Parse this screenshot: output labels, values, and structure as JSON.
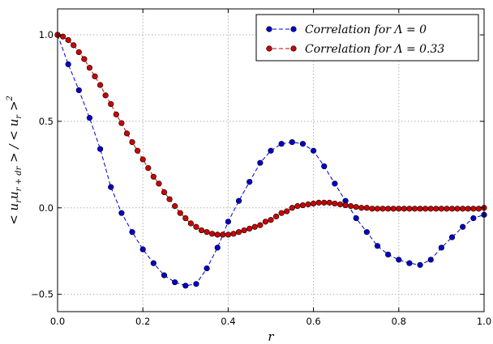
{
  "chart_data": {
    "type": "line",
    "xlabel": "r",
    "ylabel": "<u_r u_{r+dr}> / <u_r>^2",
    "xlim": [
      0.0,
      1.0
    ],
    "ylim": [
      -0.6,
      1.15
    ],
    "xticks": [
      0.0,
      0.2,
      0.4,
      0.6,
      0.8,
      1.0
    ],
    "xtick_labels": [
      "0.0",
      "0.2",
      "0.4",
      "0.6",
      "0.8",
      "1.0"
    ],
    "yticks": [
      -0.5,
      0.0,
      0.5,
      1.0
    ],
    "ytick_labels": [
      "−0.5",
      "0.0",
      "0.5",
      "1.0"
    ],
    "grid": true,
    "legend_position": "top-right",
    "series": [
      {
        "name": "Correlation for Λ=0",
        "legend_text": "Correlation for Λ = 0",
        "color": "#0000cc",
        "line_style": "dashed",
        "marker": "circle",
        "x": [
          0.0,
          0.025,
          0.05,
          0.075,
          0.1,
          0.125,
          0.15,
          0.175,
          0.2,
          0.225,
          0.25,
          0.275,
          0.3,
          0.325,
          0.35,
          0.375,
          0.4,
          0.425,
          0.45,
          0.475,
          0.5,
          0.525,
          0.55,
          0.575,
          0.6,
          0.625,
          0.65,
          0.675,
          0.7,
          0.725,
          0.75,
          0.775,
          0.8,
          0.825,
          0.85,
          0.875,
          0.9,
          0.925,
          0.95,
          0.975,
          1.0
        ],
        "y": [
          1.0,
          0.83,
          0.68,
          0.52,
          0.34,
          0.12,
          -0.03,
          -0.14,
          -0.24,
          -0.32,
          -0.39,
          -0.43,
          -0.45,
          -0.44,
          -0.35,
          -0.23,
          -0.08,
          0.04,
          0.15,
          0.26,
          0.33,
          0.37,
          0.38,
          0.37,
          0.33,
          0.24,
          0.14,
          0.04,
          -0.06,
          -0.14,
          -0.22,
          -0.27,
          -0.3,
          -0.32,
          -0.33,
          -0.3,
          -0.23,
          -0.17,
          -0.11,
          -0.06,
          -0.04
        ]
      },
      {
        "name": "Correlation for Λ=0.33",
        "legend_text": "Correlation for Λ = 0.33",
        "color": "#cc0000",
        "line_style": "dashed",
        "marker": "circle",
        "x": [
          0.0,
          0.0125,
          0.025,
          0.0375,
          0.05,
          0.0625,
          0.075,
          0.0875,
          0.1,
          0.1125,
          0.125,
          0.1375,
          0.15,
          0.1625,
          0.175,
          0.1875,
          0.2,
          0.2125,
          0.225,
          0.2375,
          0.25,
          0.2625,
          0.275,
          0.2875,
          0.3,
          0.3125,
          0.325,
          0.3375,
          0.35,
          0.3625,
          0.375,
          0.3875,
          0.4,
          0.4125,
          0.425,
          0.4375,
          0.45,
          0.4625,
          0.475,
          0.4875,
          0.5,
          0.5125,
          0.525,
          0.5375,
          0.55,
          0.5625,
          0.575,
          0.5875,
          0.6,
          0.6125,
          0.625,
          0.6375,
          0.65,
          0.6625,
          0.675,
          0.6875,
          0.7,
          0.7125,
          0.725,
          0.7375,
          0.75,
          0.7625,
          0.775,
          0.7875,
          0.8,
          0.8125,
          0.825,
          0.8375,
          0.85,
          0.8625,
          0.875,
          0.8875,
          0.9,
          0.9125,
          0.925,
          0.9375,
          0.95,
          0.9625,
          0.975,
          0.9875,
          1.0
        ],
        "y": [
          1.0,
          0.99,
          0.97,
          0.94,
          0.9,
          0.86,
          0.81,
          0.76,
          0.71,
          0.65,
          0.6,
          0.54,
          0.49,
          0.43,
          0.38,
          0.33,
          0.28,
          0.23,
          0.18,
          0.14,
          0.09,
          0.05,
          0.01,
          -0.03,
          -0.06,
          -0.09,
          -0.11,
          -0.13,
          -0.14,
          -0.15,
          -0.155,
          -0.155,
          -0.155,
          -0.15,
          -0.14,
          -0.13,
          -0.12,
          -0.11,
          -0.1,
          -0.08,
          -0.07,
          -0.05,
          -0.03,
          -0.02,
          0.0,
          0.01,
          0.015,
          0.02,
          0.025,
          0.03,
          0.03,
          0.03,
          0.025,
          0.02,
          0.015,
          0.01,
          0.005,
          0.0,
          0.0,
          -0.005,
          -0.005,
          -0.005,
          -0.005,
          -0.005,
          -0.005,
          -0.005,
          -0.005,
          -0.005,
          -0.005,
          -0.005,
          -0.005,
          -0.005,
          -0.005,
          -0.005,
          -0.005,
          -0.005,
          -0.005,
          -0.005,
          -0.005,
          -0.005,
          0.0
        ]
      }
    ]
  }
}
